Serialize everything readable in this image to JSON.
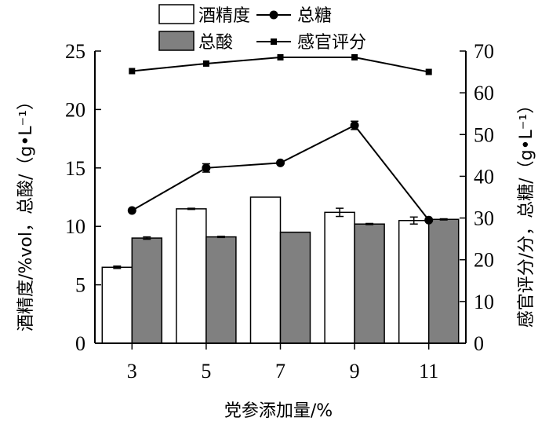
{
  "chart_data": {
    "type": "bar",
    "categories": [
      "3",
      "5",
      "7",
      "9",
      "11"
    ],
    "xlabel": "党参添加量/%",
    "ylabel_left": "酒精度/%vol，总酸/（g•L⁻¹）",
    "ylabel_right": "感官评分/分，总糖/（g•L⁻¹）",
    "ylim_left": [
      0,
      25
    ],
    "yticks_left": [
      "0",
      "5",
      "10",
      "15",
      "20",
      "25"
    ],
    "ylim_right": [
      0,
      70
    ],
    "yticks_right": [
      "0",
      "10",
      "20",
      "30",
      "40",
      "50",
      "60",
      "70"
    ],
    "grid": false,
    "legend_position": "top",
    "series": [
      {
        "name": "酒精度",
        "kind": "bar",
        "axis": "left",
        "fill": "#ffffff",
        "values": [
          6.5,
          11.5,
          12.5,
          11.2,
          10.5
        ],
        "errors": [
          0.1,
          0.05,
          0.0,
          0.35,
          0.3
        ]
      },
      {
        "name": "总酸",
        "kind": "bar",
        "axis": "left",
        "fill": "#808080",
        "values": [
          9.0,
          9.1,
          9.5,
          10.2,
          10.6
        ],
        "errors": [
          0.1,
          0.05,
          0.0,
          0.05,
          0.05
        ]
      },
      {
        "name": "总糖",
        "kind": "line",
        "marker": "circle",
        "axis": "right",
        "values": [
          31.8,
          42.0,
          43.2,
          52.2,
          29.5
        ],
        "errors": [
          0.0,
          1.0,
          0.0,
          1.0,
          0.0
        ]
      },
      {
        "name": "感官评分",
        "kind": "line",
        "marker": "square",
        "axis": "right",
        "values": [
          65.2,
          67.0,
          68.5,
          68.5,
          65.0
        ],
        "errors": [
          0,
          0,
          0,
          0,
          0
        ]
      }
    ]
  }
}
